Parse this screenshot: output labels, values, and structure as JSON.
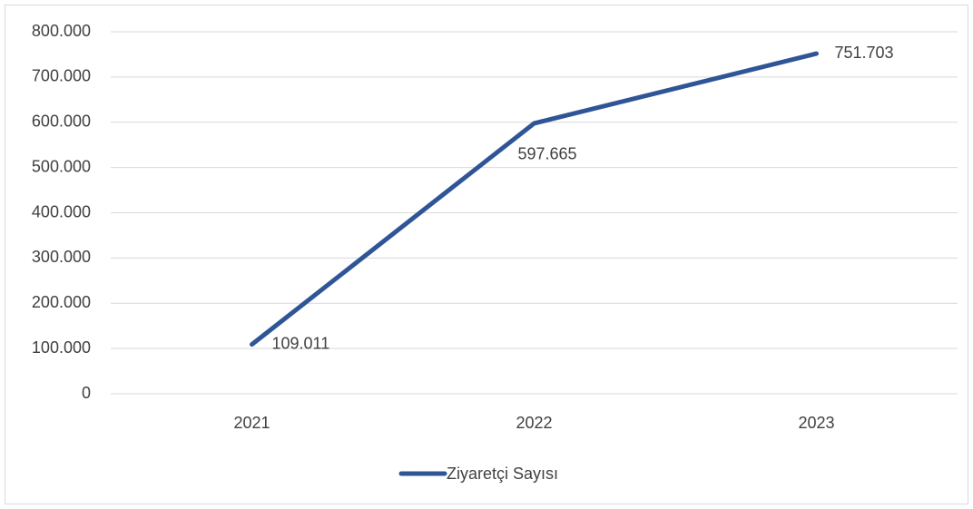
{
  "chart_data": {
    "type": "line",
    "categories": [
      "2021",
      "2022",
      "2023"
    ],
    "series": [
      {
        "name": "Ziyaretçi Sayısı",
        "color": "#2f5597",
        "values": [
          109011,
          597665,
          751703
        ],
        "value_labels": [
          "109.011",
          "597.665",
          "751.703"
        ]
      }
    ],
    "ylim": [
      0,
      800000
    ],
    "yticks": [
      0,
      {
        "value": 100000,
        "label": "100.000"
      },
      {
        "value": 200000,
        "label": "200.000"
      },
      {
        "value": 300000,
        "label": "300.000"
      },
      {
        "value": 400000,
        "label": "400.000"
      },
      {
        "value": 500000,
        "label": "500.000"
      },
      {
        "value": 600000,
        "label": "600.000"
      },
      {
        "value": 700000,
        "label": "700.000"
      },
      {
        "value": 800000,
        "label": "800.000"
      }
    ],
    "grid": true,
    "legend": "bottom"
  }
}
